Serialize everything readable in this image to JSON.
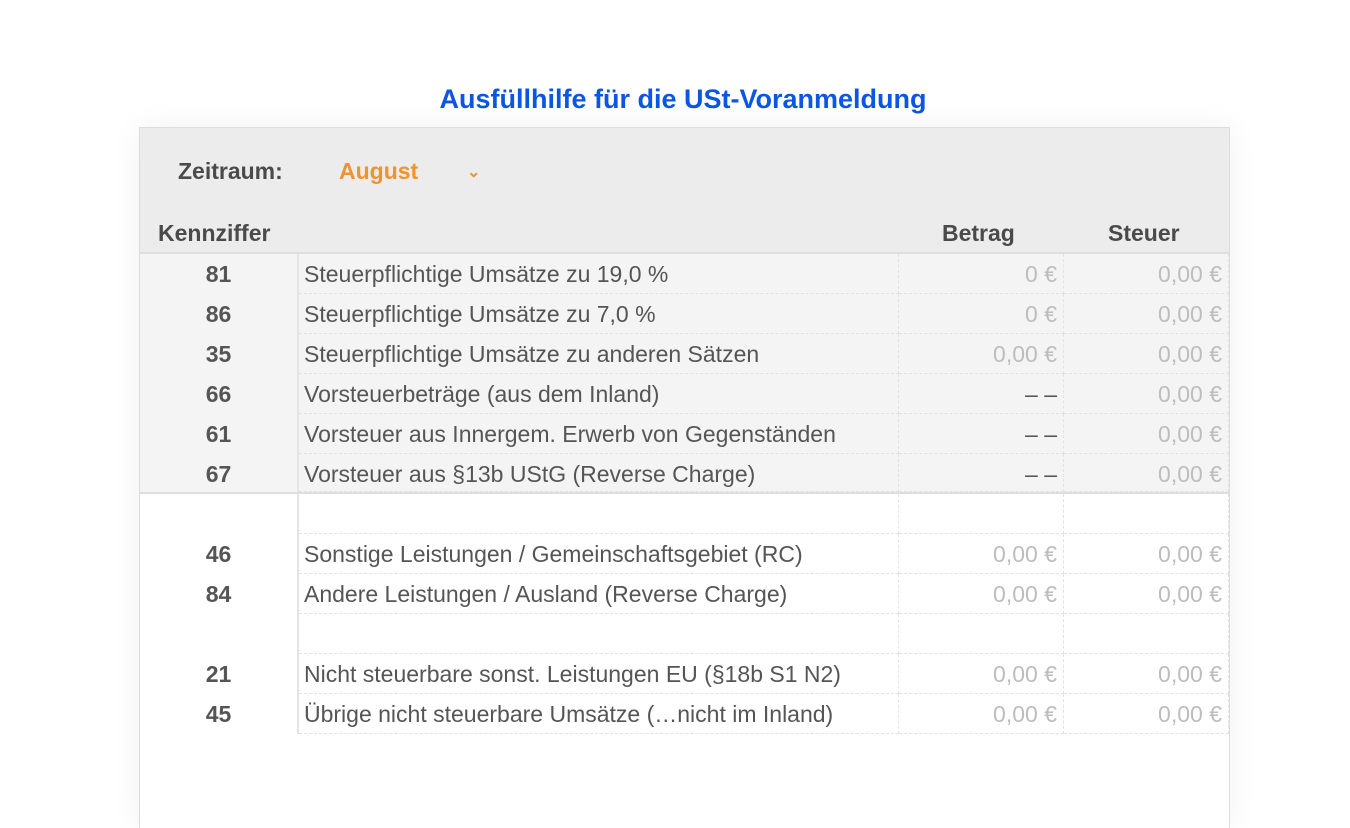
{
  "title": "Ausfüllhilfe für die USt-Voranmeldung",
  "period": {
    "label": "Zeitraum:",
    "selected": "August"
  },
  "columns": {
    "code": "Kennziffer",
    "amount": "Betrag",
    "tax": "Steuer"
  },
  "rows": [
    {
      "code": "81",
      "label": "Steuerpflichtige Umsätze zu 19,0 %",
      "amount": "0 €",
      "tax": "0,00 €"
    },
    {
      "code": "86",
      "label": "Steuerpflichtige Umsätze zu 7,0 %",
      "amount": "0 €",
      "tax": "0,00 €"
    },
    {
      "code": "35",
      "label": "Steuerpflichtige Umsätze zu anderen Sätzen",
      "amount": "0,00 €",
      "tax": "0,00 €"
    },
    {
      "code": "66",
      "label": "Vorsteuerbeträge (aus dem Inland)",
      "amount": "– –",
      "tax": "0,00 €"
    },
    {
      "code": "61",
      "label": "Vorsteuer aus Innergem. Erwerb von Gegenständen",
      "amount": "– –",
      "tax": "0,00 €"
    },
    {
      "code": "67",
      "label": "Vorsteuer aus §13b UStG (Reverse Charge)",
      "amount": "– –",
      "tax": "0,00 €"
    },
    {
      "code": "",
      "label": "",
      "amount": "",
      "tax": ""
    },
    {
      "code": "46",
      "label": "Sonstige Leistungen / Gemeinschaftsgebiet (RC)",
      "amount": "0,00 €",
      "tax": "0,00 €"
    },
    {
      "code": "84",
      "label": "Andere Leistungen / Ausland (Reverse Charge)",
      "amount": "0,00 €",
      "tax": "0,00 €"
    },
    {
      "code": "",
      "label": "",
      "amount": "",
      "tax": ""
    },
    {
      "code": "21",
      "label": "Nicht steuerbare sonst. Leistungen EU (§18b S1 N2)",
      "amount": "0,00 €",
      "tax": "0,00 €"
    },
    {
      "code": "45",
      "label": "Übrige nicht steuerbare Umsätze (…nicht im Inland)",
      "amount": "0,00 €",
      "tax": "0,00 €"
    }
  ],
  "colors": {
    "title": "#0b57e3",
    "accent": "#f0922e"
  }
}
